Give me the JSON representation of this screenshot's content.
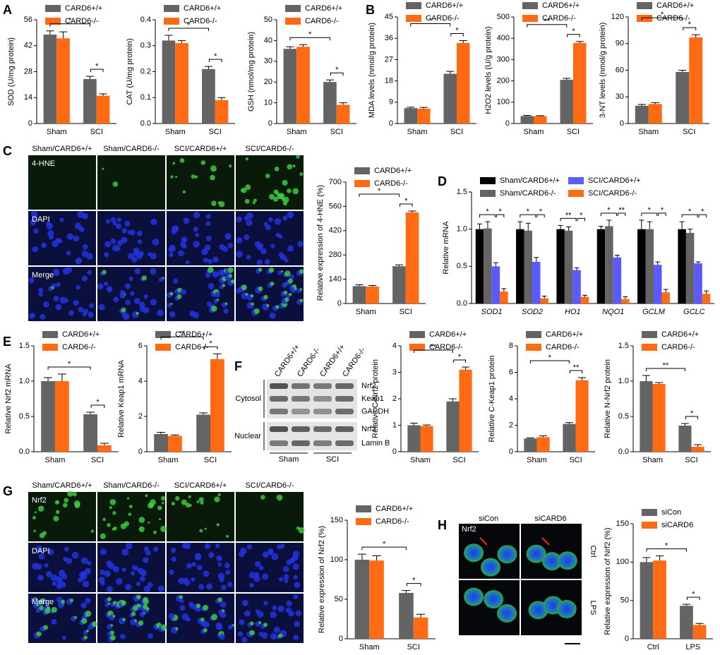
{
  "panels": [
    "A",
    "B",
    "C",
    "D",
    "E",
    "F",
    "G",
    "H"
  ],
  "micrographs": {
    "C": {
      "headers": [
        "Sham/CARD6+/+",
        "Sham/CARD6-/-",
        "SCI/CARD6+/+",
        "SCI/CARD6-/-"
      ],
      "rows": [
        "4-HNE",
        "DAPI",
        "Merge"
      ]
    },
    "G": {
      "headers": [
        "Sham/CARD6+/+",
        "Sham/CARD6-/-",
        "SCI/CARD6+/+",
        "SCI/CARD6-/-"
      ],
      "rows": [
        "Nrf2",
        "DAPI",
        "Merge"
      ]
    },
    "H": {
      "headers": [
        "siCon",
        "siCARD6"
      ],
      "stain": "Nrf2",
      "rows": [
        "Ctrl",
        "LPS"
      ]
    }
  },
  "blot": {
    "lanes": [
      "CARD6+/+",
      "CARD6-/-",
      "CARD6+/+",
      "CARD6-/-"
    ],
    "bands": [
      "Nrf2",
      "Keap1",
      "GAPDH",
      "Nrf2",
      "Lamin B"
    ],
    "fractions": [
      "Cytosol",
      "Nuclear"
    ],
    "groups": [
      "Sham",
      "SCI"
    ]
  },
  "chart_data": [
    {
      "type": "bar",
      "ylabel": "SOD (U/mg protein)",
      "categories": [
        "Sham",
        "SCI"
      ],
      "ylim": [
        0,
        56
      ],
      "yticks": [
        0,
        14,
        28,
        42,
        56
      ],
      "series": [
        {
          "name": "CARD6+/+",
          "color": "#646464",
          "values": [
            48,
            24
          ],
          "errors": [
            2,
            1.5
          ]
        },
        {
          "name": "CARD6-/-",
          "color": "#ff6a13",
          "values": [
            46,
            15
          ],
          "errors": [
            3.5,
            1
          ]
        }
      ],
      "significance": [
        "*",
        "*"
      ]
    },
    {
      "type": "bar",
      "ylabel": "CAT (U/mg protein)",
      "categories": [
        "Sham",
        "SCI"
      ],
      "ylim": [
        0,
        0.4
      ],
      "yticks": [
        {
          "value": 0,
          "label": "0.0"
        },
        0.1,
        0.2,
        0.3,
        0.4
      ],
      "series": [
        {
          "name": "CARD6+/+",
          "color": "#646464",
          "values": [
            0.32,
            0.21
          ],
          "errors": [
            0.02,
            0.01
          ]
        },
        {
          "name": "CARD6-/-",
          "color": "#ff6a13",
          "values": [
            0.31,
            0.09
          ],
          "errors": [
            0.01,
            0.01
          ]
        }
      ],
      "significance": [
        "*",
        "*"
      ]
    },
    {
      "type": "bar",
      "ylabel": "GSH (nmol/mg protein)",
      "categories": [
        "Sham",
        "SCI"
      ],
      "ylim": [
        0,
        50
      ],
      "yticks": [
        0,
        10,
        20,
        30,
        40,
        50
      ],
      "series": [
        {
          "name": "CARD6+/+",
          "color": "#646464",
          "values": [
            36,
            20
          ],
          "errors": [
            1,
            1
          ]
        },
        {
          "name": "CARD6-/-",
          "color": "#ff6a13",
          "values": [
            37,
            9
          ],
          "errors": [
            1,
            1
          ]
        }
      ],
      "significance": [
        "*",
        "*"
      ]
    },
    {
      "type": "bar",
      "ylabel": "MDA levels (nmol/g protein)",
      "categories": [
        "Sham",
        "SCI"
      ],
      "ylim": [
        0,
        45
      ],
      "yticks": [
        0,
        9,
        18,
        27,
        36,
        45
      ],
      "series": [
        {
          "name": "CARD6+/+",
          "color": "#646464",
          "values": [
            6.5,
            21
          ],
          "errors": [
            0.4,
            1
          ]
        },
        {
          "name": "CARD6-/-",
          "color": "#ff6a13",
          "values": [
            6.3,
            34
          ],
          "errors": [
            0.5,
            1
          ]
        }
      ],
      "significance": [
        "*",
        "*"
      ]
    },
    {
      "type": "bar",
      "ylabel": "H2O2 levels (U/g protein)",
      "categories": [
        "Sham",
        "SCI"
      ],
      "ylim": [
        0,
        500
      ],
      "yticks": [
        0,
        100,
        200,
        300,
        400,
        500
      ],
      "series": [
        {
          "name": "CARD6+/+",
          "color": "#646464",
          "values": [
            35,
            205
          ],
          "errors": [
            3,
            7
          ]
        },
        {
          "name": "CARD6-/-",
          "color": "#ff6a13",
          "values": [
            35,
            378
          ],
          "errors": [
            2,
            7
          ]
        }
      ],
      "significance": [
        "**",
        "*"
      ]
    },
    {
      "type": "bar",
      "ylabel": "3-NT levels (nmol/g protein)",
      "categories": [
        "Sham",
        "SCI"
      ],
      "ylim": [
        0,
        120
      ],
      "yticks": [
        0,
        30,
        60,
        90,
        120
      ],
      "series": [
        {
          "name": "CARD6+/+",
          "color": "#646464",
          "values": [
            20,
            58
          ],
          "errors": [
            1.5,
            2
          ]
        },
        {
          "name": "CARD6-/-",
          "color": "#ff6a13",
          "values": [
            22,
            97
          ],
          "errors": [
            1.5,
            3
          ]
        }
      ],
      "significance": [
        "*",
        "*"
      ]
    },
    {
      "type": "bar",
      "ylabel": "Relative expression of 4-HNE (%)",
      "categories": [
        "Sham",
        "SCI"
      ],
      "ylim": [
        0,
        700
      ],
      "yticks": [
        0,
        140,
        280,
        420,
        560,
        700
      ],
      "series": [
        {
          "name": "CARD6+/+",
          "color": "#646464",
          "values": [
            100,
            215
          ],
          "errors": [
            8,
            8
          ]
        },
        {
          "name": "CARD6-/-",
          "color": "#ff6a13",
          "values": [
            98,
            525
          ],
          "errors": [
            6,
            8
          ]
        }
      ],
      "significance": [
        "*",
        "*"
      ]
    },
    {
      "type": "bar",
      "ylabel": "Relative mRNA",
      "categories": [
        "SOD1",
        "SOD2",
        "HO1",
        "NQO1",
        "GCLM",
        "GCLC"
      ],
      "ylim": [
        0,
        1.5
      ],
      "yticks": [
        {
          "value": 0,
          "label": "0.0"
        },
        0.5,
        {
          "value": 1,
          "label": "1.0"
        },
        1.5
      ],
      "series": [
        {
          "name": "Sham/CARD6+/+",
          "color": "#000000",
          "values": [
            1.0,
            1.0,
            1.0,
            1.0,
            1.0,
            1.0
          ],
          "errors": [
            0.07,
            0.1,
            0.05,
            0.04,
            0.12,
            0.1
          ]
        },
        {
          "name": "Sham/CARD6-/-",
          "color": "#646464",
          "values": [
            1.01,
            0.98,
            0.98,
            1.04,
            1.0,
            0.95
          ],
          "errors": [
            0.09,
            0.1,
            0.05,
            0.08,
            0.1,
            0.05
          ]
        },
        {
          "name": "SCI/CARD6+/+",
          "color": "#5a5aff",
          "values": [
            0.5,
            0.56,
            0.45,
            0.62,
            0.52,
            0.54
          ],
          "errors": [
            0.05,
            0.06,
            0.03,
            0.03,
            0.04,
            0.02
          ]
        },
        {
          "name": "SCI/CARD6-/-",
          "color": "#ff6a13",
          "values": [
            0.16,
            0.07,
            0.09,
            0.06,
            0.15,
            0.13
          ],
          "errors": [
            0.04,
            0.03,
            0.02,
            0.03,
            0.04,
            0.04
          ]
        }
      ],
      "significance": [
        [
          "*",
          "*"
        ],
        [
          "*",
          "*"
        ],
        [
          "**",
          "*"
        ],
        [
          "*",
          "**"
        ],
        [
          "*",
          "*"
        ],
        [
          "*",
          "*"
        ]
      ]
    },
    {
      "type": "bar",
      "ylabel": "Relative Nrf2 mRNA",
      "categories": [
        "Sham",
        "SCI"
      ],
      "ylim": [
        0,
        1.5
      ],
      "yticks": [
        {
          "value": 0,
          "label": "0.0"
        },
        0.5,
        {
          "value": 1,
          "label": "1.0"
        },
        1.5
      ],
      "series": [
        {
          "name": "CARD6+/+",
          "color": "#646464",
          "values": [
            1.0,
            0.53
          ],
          "errors": [
            0.05,
            0.03
          ]
        },
        {
          "name": "CARD6-/-",
          "color": "#ff6a13",
          "values": [
            1.0,
            0.09
          ],
          "errors": [
            0.1,
            0.03
          ]
        }
      ],
      "significance": [
        "*",
        "*"
      ]
    },
    {
      "type": "bar",
      "ylabel": "Relative Keap1 mRNA",
      "categories": [
        "Sham",
        "SCI"
      ],
      "ylim": [
        0,
        6
      ],
      "yticks": [
        0,
        2,
        4,
        6
      ],
      "series": [
        {
          "name": "CARD6+/+",
          "color": "#646464",
          "values": [
            1.0,
            2.1
          ],
          "errors": [
            0.1,
            0.1
          ]
        },
        {
          "name": "CARD6-/-",
          "color": "#ff6a13",
          "values": [
            0.9,
            5.25
          ],
          "errors": [
            0.05,
            0.3
          ]
        }
      ],
      "significance": [
        "**",
        "*"
      ]
    },
    {
      "type": "bar",
      "ylabel": "Relative C-Nrf2 protein",
      "categories": [
        "Sham",
        "SCI"
      ],
      "ylim": [
        0,
        4
      ],
      "yticks": [
        0,
        1,
        2,
        3,
        4
      ],
      "series": [
        {
          "name": "CARD6+/+",
          "color": "#646464",
          "values": [
            1.0,
            1.9
          ],
          "errors": [
            0.08,
            0.1
          ]
        },
        {
          "name": "CARD6-/-",
          "color": "#ff6a13",
          "values": [
            0.97,
            3.1
          ],
          "errors": [
            0.04,
            0.1
          ]
        }
      ],
      "significance": [
        "**",
        "*"
      ]
    },
    {
      "type": "bar",
      "ylabel": "Relative C-Keap1 protein",
      "categories": [
        "Sham",
        "SCI"
      ],
      "ylim": [
        0,
        8
      ],
      "yticks": [
        0,
        2,
        4,
        6,
        8
      ],
      "series": [
        {
          "name": "CARD6+/+",
          "color": "#646464",
          "values": [
            1.0,
            2.1
          ],
          "errors": [
            0.05,
            0.1
          ]
        },
        {
          "name": "CARD6-/-",
          "color": "#ff6a13",
          "values": [
            1.1,
            5.4
          ],
          "errors": [
            0.1,
            0.2
          ]
        }
      ],
      "significance": [
        "*",
        "**"
      ]
    },
    {
      "type": "bar",
      "ylabel": "Relative N-Nrf2 protein",
      "categories": [
        "Sham",
        "SCI"
      ],
      "ylim": [
        0,
        1.5
      ],
      "yticks": [
        {
          "value": 0,
          "label": "0.0"
        },
        0.5,
        {
          "value": 1,
          "label": "1.0"
        },
        1.5
      ],
      "series": [
        {
          "name": "CARD6+/+",
          "color": "#646464",
          "values": [
            1.0,
            0.37
          ],
          "errors": [
            0.08,
            0.03
          ]
        },
        {
          "name": "CARD6-/-",
          "color": "#ff6a13",
          "values": [
            0.96,
            0.07
          ],
          "errors": [
            0.02,
            0.03
          ]
        }
      ],
      "significance": [
        "**",
        "*"
      ]
    },
    {
      "type": "bar",
      "ylabel": "Relative expression of Nrf2 (%)",
      "categories": [
        "Sham",
        "SCI"
      ],
      "ylim": [
        0,
        150
      ],
      "yticks": [
        0,
        50,
        100,
        150
      ],
      "series": [
        {
          "name": "CARD6+/+",
          "color": "#646464",
          "values": [
            100,
            58
          ],
          "errors": [
            7,
            3
          ]
        },
        {
          "name": "CARD6-/-",
          "color": "#ff6a13",
          "values": [
            99,
            27
          ],
          "errors": [
            6,
            4
          ]
        }
      ],
      "significance": [
        "*",
        "*"
      ]
    },
    {
      "type": "bar",
      "ylabel": "Relative expression of Nrf2 (%)",
      "categories": [
        "Ctrl",
        "LPS"
      ],
      "ylim": [
        0,
        150
      ],
      "yticks": [
        0,
        50,
        100,
        150
      ],
      "series": [
        {
          "name": "siCon",
          "color": "#646464",
          "values": [
            100,
            43
          ],
          "errors": [
            6,
            2
          ]
        },
        {
          "name": "siCARD6",
          "color": "#ff6a13",
          "values": [
            102,
            18
          ],
          "errors": [
            6,
            2
          ]
        }
      ],
      "significance": [
        "*",
        "*"
      ]
    }
  ]
}
